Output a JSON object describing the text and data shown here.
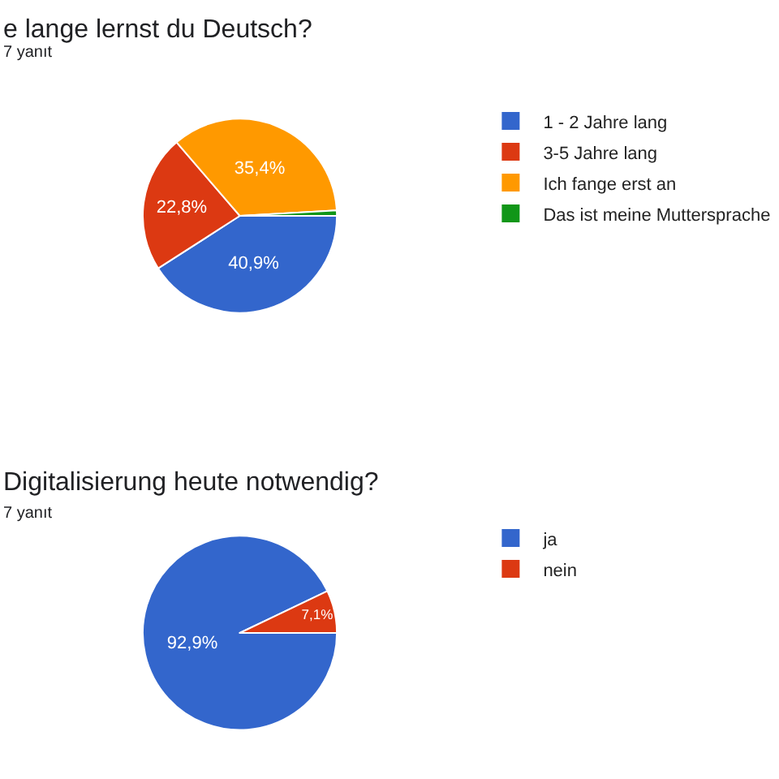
{
  "chart_data": [
    {
      "type": "pie",
      "title": "e lange lernst du Deutsch?",
      "subtitle": "7 yanıt",
      "categories": [
        "1 - 2 Jahre lang",
        "3-5 Jahre lang",
        "Ich fange erst an",
        "Das ist meine Muttersprache"
      ],
      "values": [
        40.9,
        22.8,
        35.4,
        0.9
      ],
      "colors": [
        "#3366cc",
        "#dc3912",
        "#ff9900",
        "#109618"
      ],
      "value_labels": [
        "40,9%",
        "22,8%",
        "35,4%",
        null
      ],
      "legend": "right"
    },
    {
      "type": "pie",
      "title": "Digitalisierung heute notwendig?",
      "subtitle": "7 yanıt",
      "categories": [
        "ja",
        "nein"
      ],
      "values": [
        92.9,
        7.1
      ],
      "colors": [
        "#3366cc",
        "#dc3912"
      ],
      "value_labels": [
        "92,9%",
        "7,1%"
      ],
      "legend": "right"
    }
  ]
}
